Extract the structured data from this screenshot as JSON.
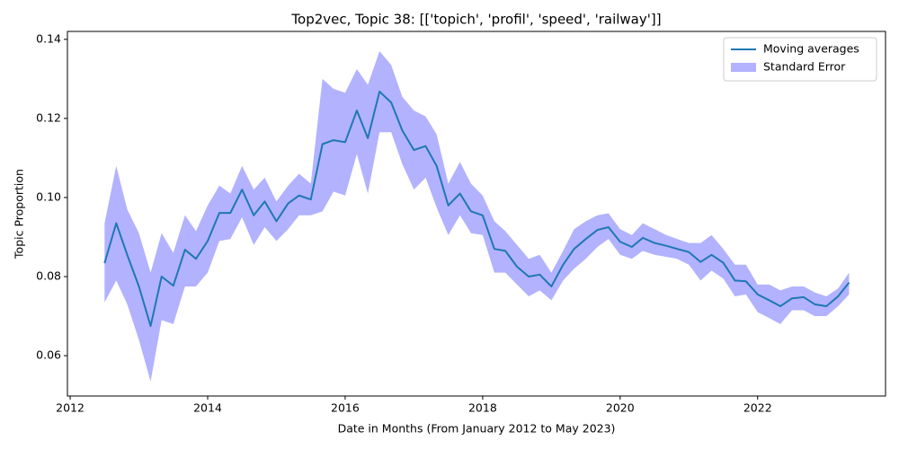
{
  "chart_data": {
    "type": "line",
    "title": "Top2vec, Topic 38: [['topich', 'profil', 'speed', 'railway']]",
    "x_label": "Date in Months (From January 2012 to May 2023)",
    "y_label": "Topic Proportion",
    "x": [
      2012.5,
      2012.67,
      2012.83,
      2013.0,
      2013.17,
      2013.33,
      2013.5,
      2013.67,
      2013.83,
      2014.0,
      2014.17,
      2014.33,
      2014.5,
      2014.67,
      2014.83,
      2015.0,
      2015.17,
      2015.33,
      2015.5,
      2015.67,
      2015.83,
      2016.0,
      2016.17,
      2016.33,
      2016.5,
      2016.67,
      2016.83,
      2017.0,
      2017.17,
      2017.33,
      2017.5,
      2017.67,
      2017.83,
      2018.0,
      2018.17,
      2018.33,
      2018.5,
      2018.67,
      2018.83,
      2019.0,
      2019.17,
      2019.33,
      2019.5,
      2019.67,
      2019.83,
      2020.0,
      2020.17,
      2020.33,
      2020.5,
      2020.67,
      2020.83,
      2021.0,
      2021.17,
      2021.33,
      2021.5,
      2021.67,
      2021.83,
      2022.0,
      2022.17,
      2022.33,
      2022.5,
      2022.67,
      2022.83,
      2023.0,
      2023.17,
      2023.33
    ],
    "series": [
      {
        "name": "Moving averages",
        "color": "#1f77b4",
        "values": [
          0.0834,
          0.0935,
          0.0855,
          0.0775,
          0.0675,
          0.08,
          0.0777,
          0.0868,
          0.0845,
          0.089,
          0.0961,
          0.0961,
          0.102,
          0.0955,
          0.099,
          0.094,
          0.0985,
          0.1005,
          0.0995,
          0.1135,
          0.1145,
          0.114,
          0.122,
          0.115,
          0.1268,
          0.124,
          0.117,
          0.112,
          0.113,
          0.108,
          0.098,
          0.101,
          0.0965,
          0.0955,
          0.087,
          0.0865,
          0.0825,
          0.08,
          0.0805,
          0.0775,
          0.083,
          0.087,
          0.0895,
          0.0918,
          0.0925,
          0.0888,
          0.0875,
          0.0898,
          0.0885,
          0.0878,
          0.087,
          0.0862,
          0.0837,
          0.0855,
          0.0835,
          0.079,
          0.0788,
          0.0755,
          0.074,
          0.0725,
          0.0745,
          0.0748,
          0.073,
          0.0725,
          0.075,
          0.0785
        ]
      }
    ],
    "band": {
      "name": "Standard Error",
      "color": "#b2b2ff",
      "lower": [
        0.0735,
        0.079,
        0.073,
        0.064,
        0.0535,
        0.069,
        0.068,
        0.0775,
        0.0775,
        0.081,
        0.089,
        0.0895,
        0.095,
        0.088,
        0.0925,
        0.089,
        0.092,
        0.0955,
        0.0955,
        0.0965,
        0.1015,
        0.1005,
        0.111,
        0.101,
        0.1165,
        0.1165,
        0.1085,
        0.102,
        0.105,
        0.0975,
        0.0905,
        0.0955,
        0.091,
        0.0905,
        0.081,
        0.081,
        0.078,
        0.075,
        0.0765,
        0.074,
        0.079,
        0.082,
        0.0845,
        0.0875,
        0.0895,
        0.0855,
        0.0845,
        0.0865,
        0.0855,
        0.085,
        0.0845,
        0.083,
        0.079,
        0.0815,
        0.0795,
        0.075,
        0.0755,
        0.071,
        0.0695,
        0.068,
        0.0715,
        0.0715,
        0.07,
        0.07,
        0.0725,
        0.0755
      ],
      "upper": [
        0.0935,
        0.108,
        0.097,
        0.091,
        0.081,
        0.091,
        0.086,
        0.0955,
        0.0915,
        0.098,
        0.103,
        0.101,
        0.108,
        0.102,
        0.105,
        0.099,
        0.103,
        0.106,
        0.1035,
        0.13,
        0.1275,
        0.1265,
        0.1325,
        0.1285,
        0.137,
        0.1335,
        0.1255,
        0.122,
        0.1205,
        0.116,
        0.1035,
        0.109,
        0.1035,
        0.1005,
        0.094,
        0.0915,
        0.088,
        0.0845,
        0.0855,
        0.081,
        0.0865,
        0.092,
        0.094,
        0.0955,
        0.096,
        0.092,
        0.0905,
        0.0935,
        0.092,
        0.0905,
        0.0895,
        0.0885,
        0.0885,
        0.0905,
        0.087,
        0.083,
        0.083,
        0.078,
        0.078,
        0.0765,
        0.0775,
        0.0775,
        0.076,
        0.075,
        0.077,
        0.081
      ]
    },
    "xlim": [
      2011.96,
      2023.86
    ],
    "ylim": [
      0.0498,
      0.142
    ],
    "xticks": [
      2012,
      2014,
      2016,
      2018,
      2020,
      2022
    ],
    "yticks": [
      0.06,
      0.08,
      {
        "value": 0.1,
        "label": "0.10"
      },
      0.12,
      0.14
    ],
    "grid": false,
    "legend": "upper right"
  }
}
